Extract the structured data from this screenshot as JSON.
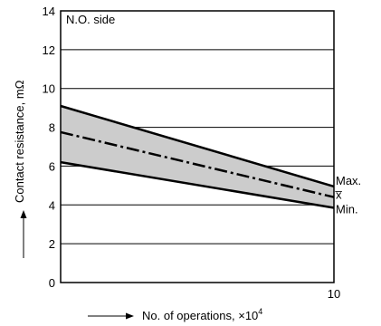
{
  "chart_data": {
    "type": "area",
    "title": "",
    "annotation": "N.O. side",
    "xlabel_arrow": "——▶",
    "xlabel": "No. of operations, ×10⁴",
    "ylabel": "Contact resistance, mΩ",
    "xlim": [
      0,
      10
    ],
    "ylim": [
      0,
      14
    ],
    "y_ticks": [
      "0",
      "2",
      "4",
      "6",
      "8",
      "10",
      "12",
      "14"
    ],
    "x_tick_labels": [
      "10"
    ],
    "grid": "horizontal",
    "series": [
      {
        "name": "Max.",
        "x": [
          0,
          10
        ],
        "y": [
          9.1,
          4.95
        ]
      },
      {
        "name": "x̅",
        "x": [
          0,
          10
        ],
        "y": [
          7.75,
          4.4
        ]
      },
      {
        "name": "Min.",
        "x": [
          0,
          10
        ],
        "y": [
          6.2,
          3.85
        ]
      }
    ],
    "colors": {
      "band": "#cccccc",
      "line": "#000000"
    }
  }
}
